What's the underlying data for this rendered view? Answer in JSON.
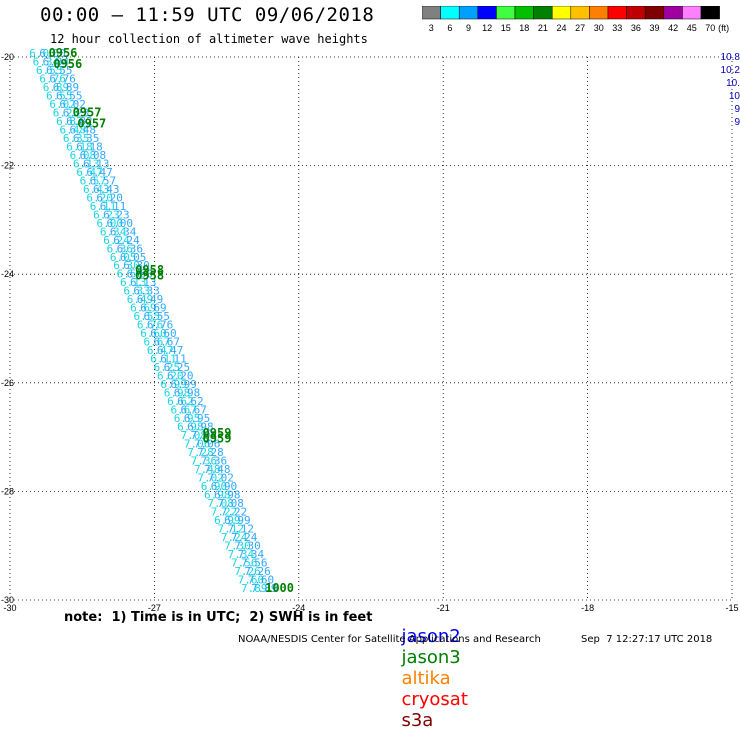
{
  "header": {
    "title": "00:00 – 11:59 UTC 09/06/2018",
    "subtitle": "12 hour collection of altimeter wave heights"
  },
  "colorbar": {
    "unit": "(ft)",
    "bins": [
      {
        "label": "3",
        "color": "#808080"
      },
      {
        "label": "6",
        "color": "#00ffff"
      },
      {
        "label": "9",
        "color": "#00a0ff"
      },
      {
        "label": "12",
        "color": "#0000ff"
      },
      {
        "label": "15",
        "color": "#40ff40"
      },
      {
        "label": "18",
        "color": "#00c000"
      },
      {
        "label": "21",
        "color": "#008000"
      },
      {
        "label": "24",
        "color": "#ffff00"
      },
      {
        "label": "27",
        "color": "#ffc000"
      },
      {
        "label": "30",
        "color": "#ff8000"
      },
      {
        "label": "33",
        "color": "#ff0000"
      },
      {
        "label": "36",
        "color": "#c00000"
      },
      {
        "label": "39",
        "color": "#800000"
      },
      {
        "label": "42",
        "color": "#a000a0"
      },
      {
        "label": "45",
        "color": "#ff80ff"
      },
      {
        "label": "70",
        "color": "#000000"
      }
    ]
  },
  "chart_data": {
    "type": "scatter",
    "xlim": [
      -30,
      -15
    ],
    "ylim": [
      -30,
      -20
    ],
    "x_ticks": [
      "-30",
      "-27",
      "-24",
      "-21",
      "-18",
      "-15"
    ],
    "y_ticks": [
      "-20",
      "-22",
      "-24",
      "-26",
      "-28",
      "-30"
    ],
    "grid": true,
    "track": {
      "mission": "jason3",
      "start": {
        "lon": -29.6,
        "lat": -20.0
      },
      "end": {
        "lon": -25.2,
        "lat": -29.85
      },
      "swh_ft": [
        "6.00",
        "6.34",
        "6.55",
        "6.76",
        "6.89",
        "6.55",
        "6.02",
        "6.23",
        "6.82",
        "6.48",
        "6.35",
        "6.18",
        "6.08",
        "6.13",
        "6.47",
        "6.57",
        "6.43",
        "6.20",
        "6.11",
        "6.23",
        "6.00",
        "6.34",
        "6.24",
        "6.36",
        "6.05",
        "6.30",
        "6.50",
        "6.13",
        "6.33",
        "6.49",
        "6.69",
        "6.55",
        "6.76",
        "6.60",
        "6.67",
        "6.47",
        "6.11",
        "6.25",
        "6.20",
        "6.99",
        "6.98",
        "6.62",
        "6.67",
        "6.95",
        "6.98",
        "7.08",
        "7.06",
        "7.28",
        "7.36",
        "7.48",
        "7.02",
        "6.90",
        "6.98",
        "7.08",
        "7.22",
        "6.99",
        "7.12",
        "7.24",
        "7.30",
        "7.34",
        "7.56",
        "7.26",
        "7.60",
        "7.89"
      ]
    },
    "time_labels": [
      {
        "text": "0956",
        "lon": -29.2,
        "lat": -20.0
      },
      {
        "text": "0956",
        "lon": -29.1,
        "lat": -20.2
      },
      {
        "text": "0957",
        "lon": -28.7,
        "lat": -21.1
      },
      {
        "text": "0957",
        "lon": -28.6,
        "lat": -21.3
      },
      {
        "text": "0958",
        "lon": -27.4,
        "lat": -24.0
      },
      {
        "text": "0958",
        "lon": -27.4,
        "lat": -24.1
      },
      {
        "text": "0959",
        "lon": -26.0,
        "lat": -27.0
      },
      {
        "text": "0959",
        "lon": -26.0,
        "lat": -27.1
      },
      {
        "text": "1000",
        "lon": -24.7,
        "lat": -29.85
      }
    ],
    "edge_values": [
      "10.8",
      "10.2",
      "10.",
      "10",
      "9",
      "9"
    ]
  },
  "footer": {
    "note": "note:  1) Time is in UTC;  2) SWH is in feet",
    "missions": [
      {
        "name": "jason2",
        "color": "#0000ff"
      },
      {
        "name": "jason3",
        "color": "#008000"
      },
      {
        "name": "altika",
        "color": "#ff8000"
      },
      {
        "name": "cryosat",
        "color": "#ff0000"
      },
      {
        "name": "s3a",
        "color": "#800000"
      }
    ],
    "credit": "NOAA/NESDIS Center for Satellite Applications and Research",
    "timestamp": "Sep  7 12:27:17 UTC 2018"
  }
}
